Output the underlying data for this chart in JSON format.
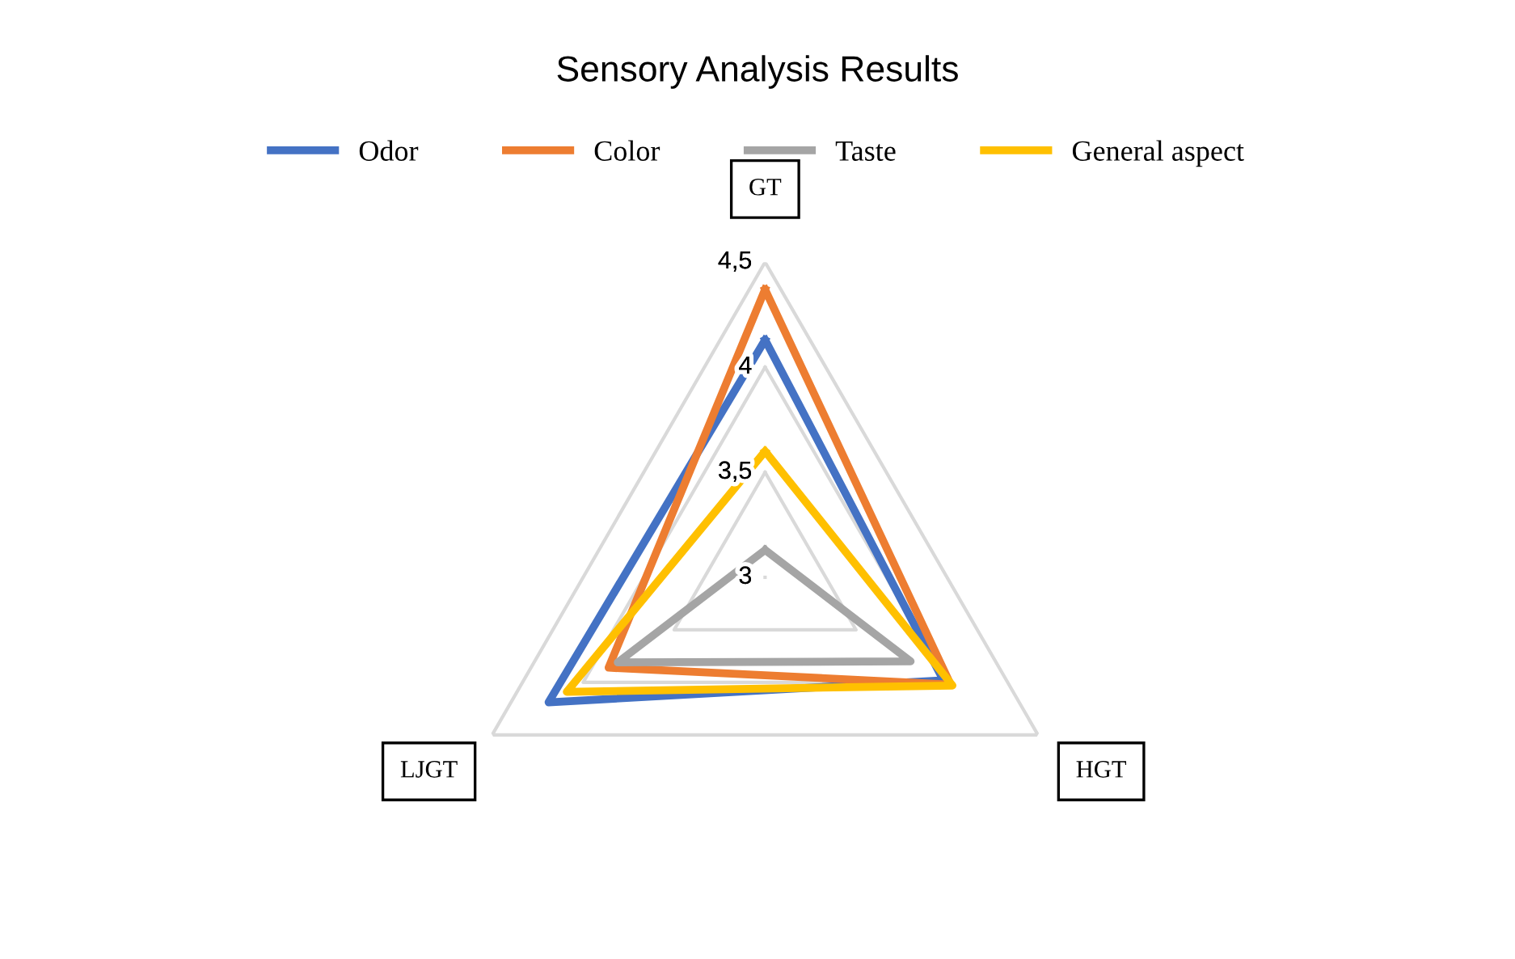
{
  "chart_data": {
    "type": "radar",
    "title": "Sensory Analysis Results",
    "categories": [
      "GT",
      "HGT",
      "LJGT"
    ],
    "series": [
      {
        "name": "Odor",
        "color": "#4472c4",
        "values": [
          4.13,
          3.98,
          4.19
        ]
      },
      {
        "name": "Color",
        "color": "#ed7d31",
        "values": [
          4.37,
          4.02,
          3.86
        ]
      },
      {
        "name": "Taste",
        "color": "#a5a5a5",
        "values": [
          3.13,
          3.8,
          3.81
        ]
      },
      {
        "name": "General aspect",
        "color": "#ffc000",
        "values": [
          3.6,
          4.03,
          4.09
        ]
      }
    ],
    "ylim": [
      3,
      4.5
    ],
    "yticks": [
      {
        "value": 3,
        "label": "3"
      },
      {
        "value": 3.5,
        "label": "3,5"
      },
      {
        "value": 4,
        "label": "4"
      },
      {
        "value": 4.5,
        "label": "4,5"
      }
    ],
    "grid": true,
    "legend": "top",
    "marker": "none"
  }
}
